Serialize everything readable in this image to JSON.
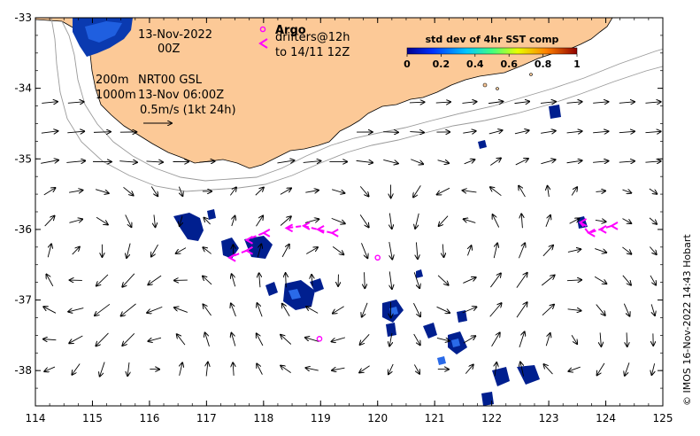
{
  "map": {
    "x_ticks": [
      "114",
      "115",
      "116",
      "117",
      "118",
      "119",
      "120",
      "121",
      "122",
      "123",
      "124",
      "125"
    ],
    "y_ticks": [
      "-33",
      "-34",
      "-35",
      "-36",
      "-37",
      "-38"
    ],
    "lon_range": [
      114,
      125
    ],
    "lat_range": [
      -38.5,
      -33
    ]
  },
  "annotations": {
    "date": "13-Nov-2022",
    "hour": "00Z",
    "contour_200": "200m",
    "contour_1000": "1000m",
    "source": "NRT00 GSL",
    "source_time": "13-Nov 06:00Z",
    "scale_label": "0.5m/s (1kt 24h)"
  },
  "legend": {
    "argo_label": "Argo",
    "drifters_label": "drifters@12h",
    "drifters_to": "to 14/11 12Z",
    "colorbar_title": "std dev of 4hr SST comp",
    "colorbar_ticks": [
      "0",
      "0.2",
      "0.4",
      "0.6",
      "0.8",
      "1"
    ]
  },
  "credit": "© IMOS 16-Nov-2022 14:43 Hobart",
  "colors": {
    "land": "#fcc997",
    "marker": "#ff00ff",
    "sst_dark": "#001f8f",
    "sst_mid": "#1f4fd6",
    "contour": "#9a9a9a"
  },
  "argo_floats": [
    {
      "lon": 120.0,
      "lat": -36.4
    },
    {
      "lon": 118.98,
      "lat": -37.55
    }
  ],
  "drifters": [
    [
      [
        119.2,
        -36.05
      ],
      [
        118.95,
        -36.0
      ],
      [
        118.7,
        -35.95
      ],
      [
        118.4,
        -35.98
      ]
    ],
    [
      [
        118.0,
        -36.05
      ],
      [
        117.7,
        -36.15
      ]
    ],
    [
      [
        117.7,
        -36.3
      ],
      [
        117.4,
        -36.4
      ]
    ],
    [
      [
        123.55,
        -35.9
      ],
      [
        123.7,
        -36.05
      ],
      [
        123.9,
        -36.0
      ],
      [
        124.1,
        -35.95
      ]
    ]
  ]
}
